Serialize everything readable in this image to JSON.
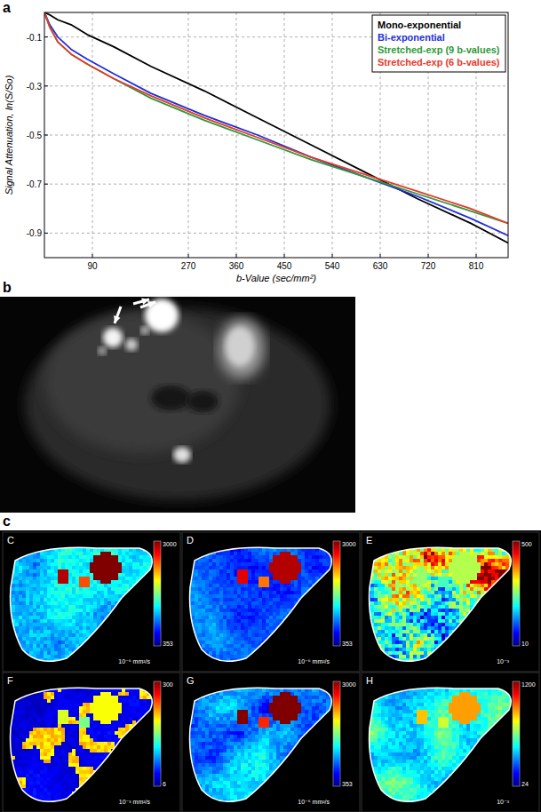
{
  "chart_data": {
    "type": "line",
    "x_label": "b-Value (sec/mm²)",
    "y_label": "Signal Attenuation, ln(S/So)",
    "x": [
      0,
      10,
      25,
      50,
      80,
      130,
      200,
      300,
      400,
      500,
      600,
      700,
      800,
      870
    ],
    "series": [
      {
        "name": "Mono-exponential",
        "color": "#000000",
        "values": [
          0,
          -0.01,
          -0.03,
          -0.05,
          -0.09,
          -0.14,
          -0.22,
          -0.32,
          -0.43,
          -0.54,
          -0.65,
          -0.76,
          -0.86,
          -0.94
        ]
      },
      {
        "name": "Bi-exponential",
        "color": "#1f2fd6",
        "values": [
          0,
          -0.05,
          -0.1,
          -0.15,
          -0.19,
          -0.25,
          -0.33,
          -0.42,
          -0.5,
          -0.59,
          -0.67,
          -0.75,
          -0.84,
          -0.91
        ]
      },
      {
        "name": "Stretched-exp (9 b-values)",
        "color": "#2e9a3a",
        "values": [
          0,
          -0.06,
          -0.12,
          -0.17,
          -0.21,
          -0.27,
          -0.35,
          -0.44,
          -0.52,
          -0.6,
          -0.67,
          -0.74,
          -0.81,
          -0.86
        ]
      },
      {
        "name": "Stretched-exp (6 b-values)",
        "color": "#e8392a",
        "values": [
          0,
          -0.06,
          -0.12,
          -0.17,
          -0.21,
          -0.27,
          -0.34,
          -0.43,
          -0.51,
          -0.59,
          -0.66,
          -0.73,
          -0.8,
          -0.86
        ]
      }
    ],
    "xlim": [
      0,
      870
    ],
    "ylim": [
      -1,
      0
    ],
    "xticks": [
      90,
      270,
      360,
      450,
      540,
      630,
      720,
      810
    ],
    "yticks": [
      -0.1,
      -0.3,
      -0.5,
      -0.7,
      -0.9
    ],
    "grid": true,
    "legend": "top-right"
  },
  "figure": {
    "panel_labels": [
      "a",
      "b",
      "c"
    ],
    "maps": [
      {
        "label": "C",
        "max": 3000,
        "min": 353,
        "unit": "10⁻⁶ mm²/s"
      },
      {
        "label": "D",
        "max": 3000,
        "min": 353,
        "unit": "10⁻⁶ mm²/s"
      },
      {
        "label": "E",
        "max": 500,
        "min": 10,
        "unit": "10⁻³"
      },
      {
        "label": "F",
        "max": 300,
        "min": 6,
        "unit": "10⁻³ mm²/s"
      },
      {
        "label": "G",
        "max": 3000,
        "min": 353,
        "unit": "10⁻⁶ mm²/s"
      },
      {
        "label": "H",
        "max": 1200,
        "min": 24,
        "unit": "10⁻³"
      }
    ]
  }
}
